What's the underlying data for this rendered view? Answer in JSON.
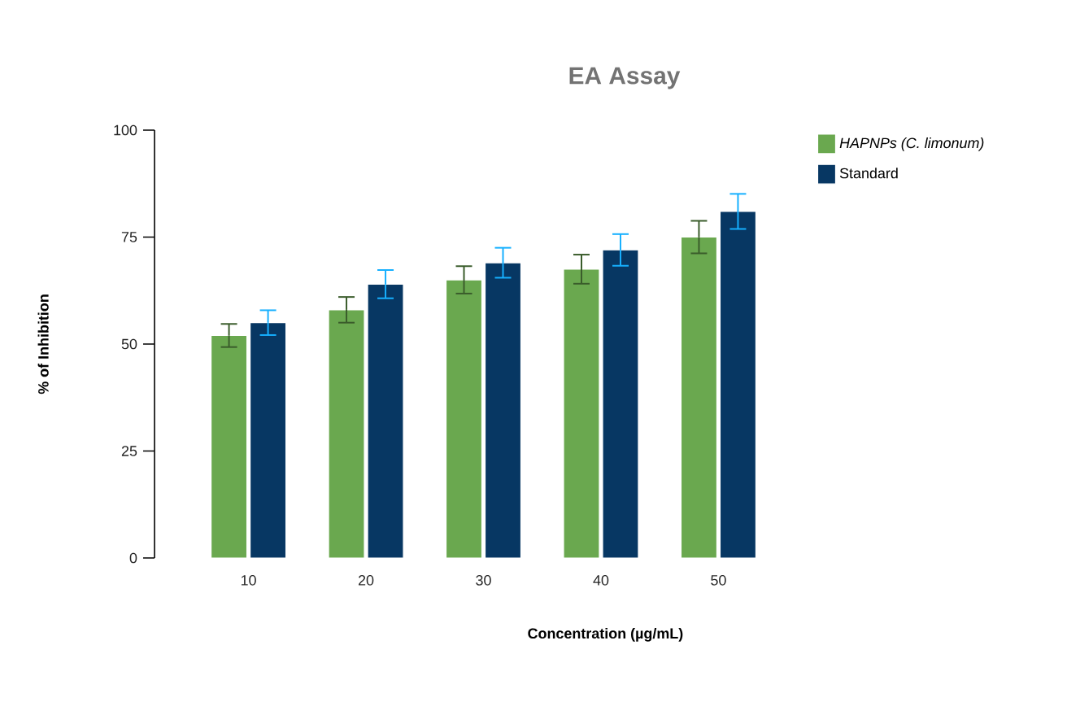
{
  "chart_data": {
    "type": "bar",
    "title": "EA Assay",
    "xlabel": "Concentration (µg/mL)",
    "ylabel": "% of Inhibition",
    "categories": [
      "10",
      "20",
      "30",
      "40",
      "50"
    ],
    "series": [
      {
        "name": "*HAPNPs (C. limonum)*",
        "color": "#6aa84f",
        "values": [
          52,
          58,
          65,
          67.5,
          75
        ],
        "errors": [
          2.7,
          3,
          3.2,
          3.4,
          3.8
        ]
      },
      {
        "name": "Standard",
        "color": "#073763",
        "values": [
          55,
          64,
          69,
          72,
          81
        ],
        "errors": [
          2.9,
          3.3,
          3.5,
          3.7,
          4.1
        ]
      }
    ],
    "ylim": [
      0,
      100
    ],
    "yticks": [
      0,
      25,
      50,
      75,
      100
    ],
    "grid": false,
    "legend": "top right"
  }
}
